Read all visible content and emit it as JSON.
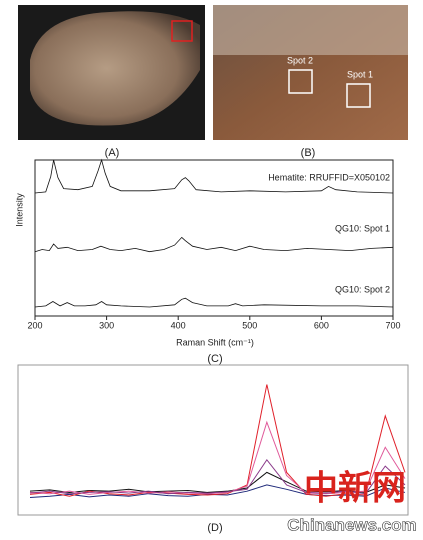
{
  "panels": {
    "a": "(A)",
    "b": "(B)",
    "c": "(C)",
    "d": "(D)"
  },
  "spots": [
    "Spot 2",
    "Spot 1"
  ],
  "watermark": {
    "cn": "中新网",
    "en": "Chinanews.com"
  },
  "chart_data": [
    {
      "type": "line",
      "x_label": "Raman Shift (cm⁻¹)",
      "y_label": "Intensity",
      "xlim": [
        200,
        700
      ],
      "xticks": [
        200,
        300,
        400,
        500,
        600,
        700
      ],
      "series": [
        {
          "name": "Hematite: RRUFFID=X050102",
          "color": "#111",
          "x": [
            200,
            215,
            222,
            226,
            232,
            240,
            260,
            280,
            288,
            293,
            298,
            305,
            320,
            360,
            395,
            405,
            410,
            415,
            425,
            460,
            500,
            550,
            600,
            610,
            620,
            650,
            700
          ],
          "values": [
            0,
            1,
            15,
            30,
            14,
            4,
            3,
            6,
            20,
            30,
            18,
            6,
            2,
            2,
            4,
            12,
            14,
            11,
            3,
            1,
            2,
            1,
            2,
            6,
            3,
            1,
            0
          ]
        },
        {
          "name": "QG10: Spot 1",
          "color": "#111",
          "x": [
            200,
            210,
            220,
            226,
            232,
            245,
            260,
            280,
            292,
            305,
            320,
            340,
            360,
            380,
            395,
            405,
            410,
            420,
            440,
            460,
            480,
            500,
            520,
            550,
            580,
            610,
            640,
            670,
            700
          ],
          "values": [
            3,
            5,
            4,
            10,
            6,
            7,
            4,
            5,
            8,
            5,
            4,
            6,
            3,
            5,
            9,
            16,
            13,
            8,
            5,
            7,
            4,
            8,
            5,
            4,
            6,
            5,
            4,
            6,
            7
          ]
        },
        {
          "name": "QG10: Spot 2",
          "color": "#111",
          "x": [
            200,
            215,
            225,
            235,
            245,
            255,
            270,
            285,
            293,
            300,
            320,
            360,
            395,
            405,
            410,
            420,
            440,
            470,
            480,
            490,
            520,
            600,
            650,
            700
          ],
          "values": [
            0,
            1,
            5,
            1,
            4,
            1,
            1,
            2,
            5,
            2,
            1,
            0,
            2,
            7,
            8,
            4,
            1,
            1,
            3,
            1,
            2,
            1,
            1,
            0
          ]
        }
      ]
    },
    {
      "type": "line",
      "ylim": [
        0,
        220
      ],
      "series": [
        {
          "color": "#111",
          "values": [
            30,
            32,
            28,
            31,
            30,
            33,
            29,
            30,
            31,
            28,
            30,
            35,
            60,
            45,
            30,
            29,
            31,
            28,
            40,
            35
          ]
        },
        {
          "color": "#1f2a7a",
          "values": [
            20,
            22,
            25,
            21,
            24,
            22,
            26,
            23,
            22,
            25,
            24,
            30,
            40,
            33,
            25,
            23,
            24,
            22,
            35,
            28
          ]
        },
        {
          "color": "#e0202a",
          "values": [
            25,
            28,
            22,
            30,
            26,
            24,
            28,
            27,
            25,
            24,
            26,
            40,
            200,
            60,
            25,
            22,
            26,
            24,
            150,
            60
          ]
        },
        {
          "color": "#e05a9a",
          "values": [
            28,
            26,
            30,
            25,
            28,
            30,
            27,
            29,
            27,
            26,
            28,
            38,
            140,
            55,
            27,
            26,
            28,
            30,
            100,
            50
          ]
        },
        {
          "color": "#8a3a8a",
          "values": [
            27,
            30,
            26,
            28,
            29,
            27,
            30,
            26,
            28,
            27,
            29,
            33,
            80,
            40,
            28,
            27,
            30,
            26,
            70,
            40
          ]
        }
      ]
    }
  ]
}
